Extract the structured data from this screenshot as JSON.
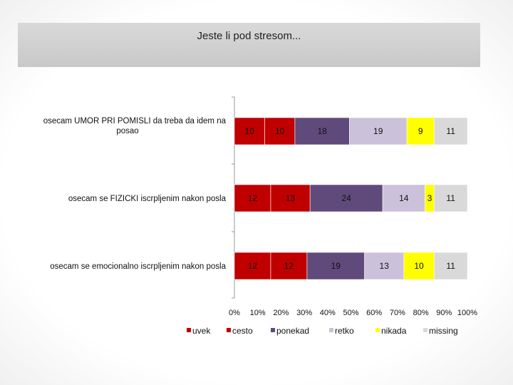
{
  "title": "Jeste li pod stresom...",
  "chart_data": {
    "type": "bar",
    "orientation": "horizontal",
    "stacked": "percent",
    "title": "Jeste li pod stresom...",
    "categories": [
      "osecam UMOR PRI POMISLI da treba da idem na posao",
      "osecam se FIZICKI iscrpljenim nakon posla",
      "osecam se emocionalno iscrpljenim nakon posla"
    ],
    "category_lines": [
      [
        "osecam UMOR PRI POMISLI da treba da idem na",
        "posao"
      ],
      [
        "osecam se FIZICKI iscrpljenim nakon posla"
      ],
      [
        "osecam se emocionalno iscrpljenim nakon posla"
      ]
    ],
    "series": [
      {
        "name": "uvek",
        "color": "#c00000",
        "values": [
          10,
          12,
          12
        ]
      },
      {
        "name": "cesto",
        "color": "#c00000",
        "values": [
          10,
          13,
          12
        ]
      },
      {
        "name": "ponekad",
        "color": "#604a7b",
        "values": [
          18,
          24,
          19
        ]
      },
      {
        "name": "retko",
        "color": "#ccc1da",
        "values": [
          19,
          14,
          13
        ]
      },
      {
        "name": "nikada",
        "color": "#ffff00",
        "values": [
          9,
          3,
          10
        ]
      },
      {
        "name": "missing",
        "color": "#d9d9d9",
        "values": [
          11,
          11,
          11
        ]
      }
    ],
    "xticks": [
      "0%",
      "10%",
      "20%",
      "30%",
      "40%",
      "50%",
      "60%",
      "70%",
      "80%",
      "90%",
      "100%"
    ],
    "xlim": [
      0,
      100
    ],
    "legend": "bottom",
    "grid": false
  }
}
